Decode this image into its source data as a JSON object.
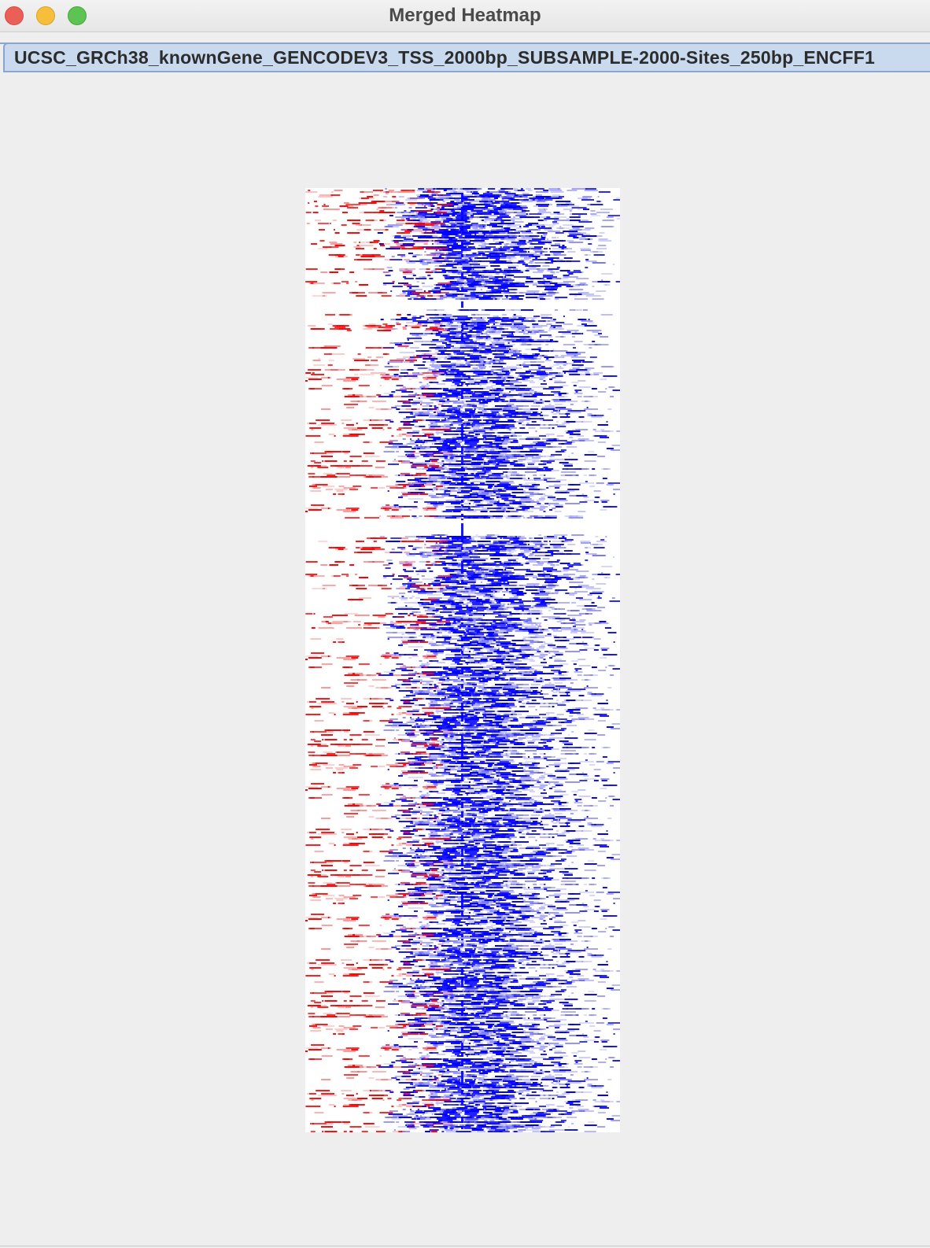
{
  "window": {
    "title": "Merged Heatmap"
  },
  "tabs": [
    {
      "label": "UCSC_GRCh38_knownGene_GENCODEV3_TSS_2000bp_SUBSAMPLE-2000-Sites_250bp_ENCFF1",
      "selected": true
    }
  ],
  "heatmap": {
    "kind": "merged two-color signal heatmap",
    "colors": {
      "background": "#ffffff",
      "sense": "#0000ff",
      "antisense": "#ff0000"
    }
  },
  "chart_data": {
    "type": "heatmap",
    "title": "",
    "xlabel": "",
    "ylabel": "",
    "rows": 2000,
    "legend": "none",
    "grid": false
  }
}
